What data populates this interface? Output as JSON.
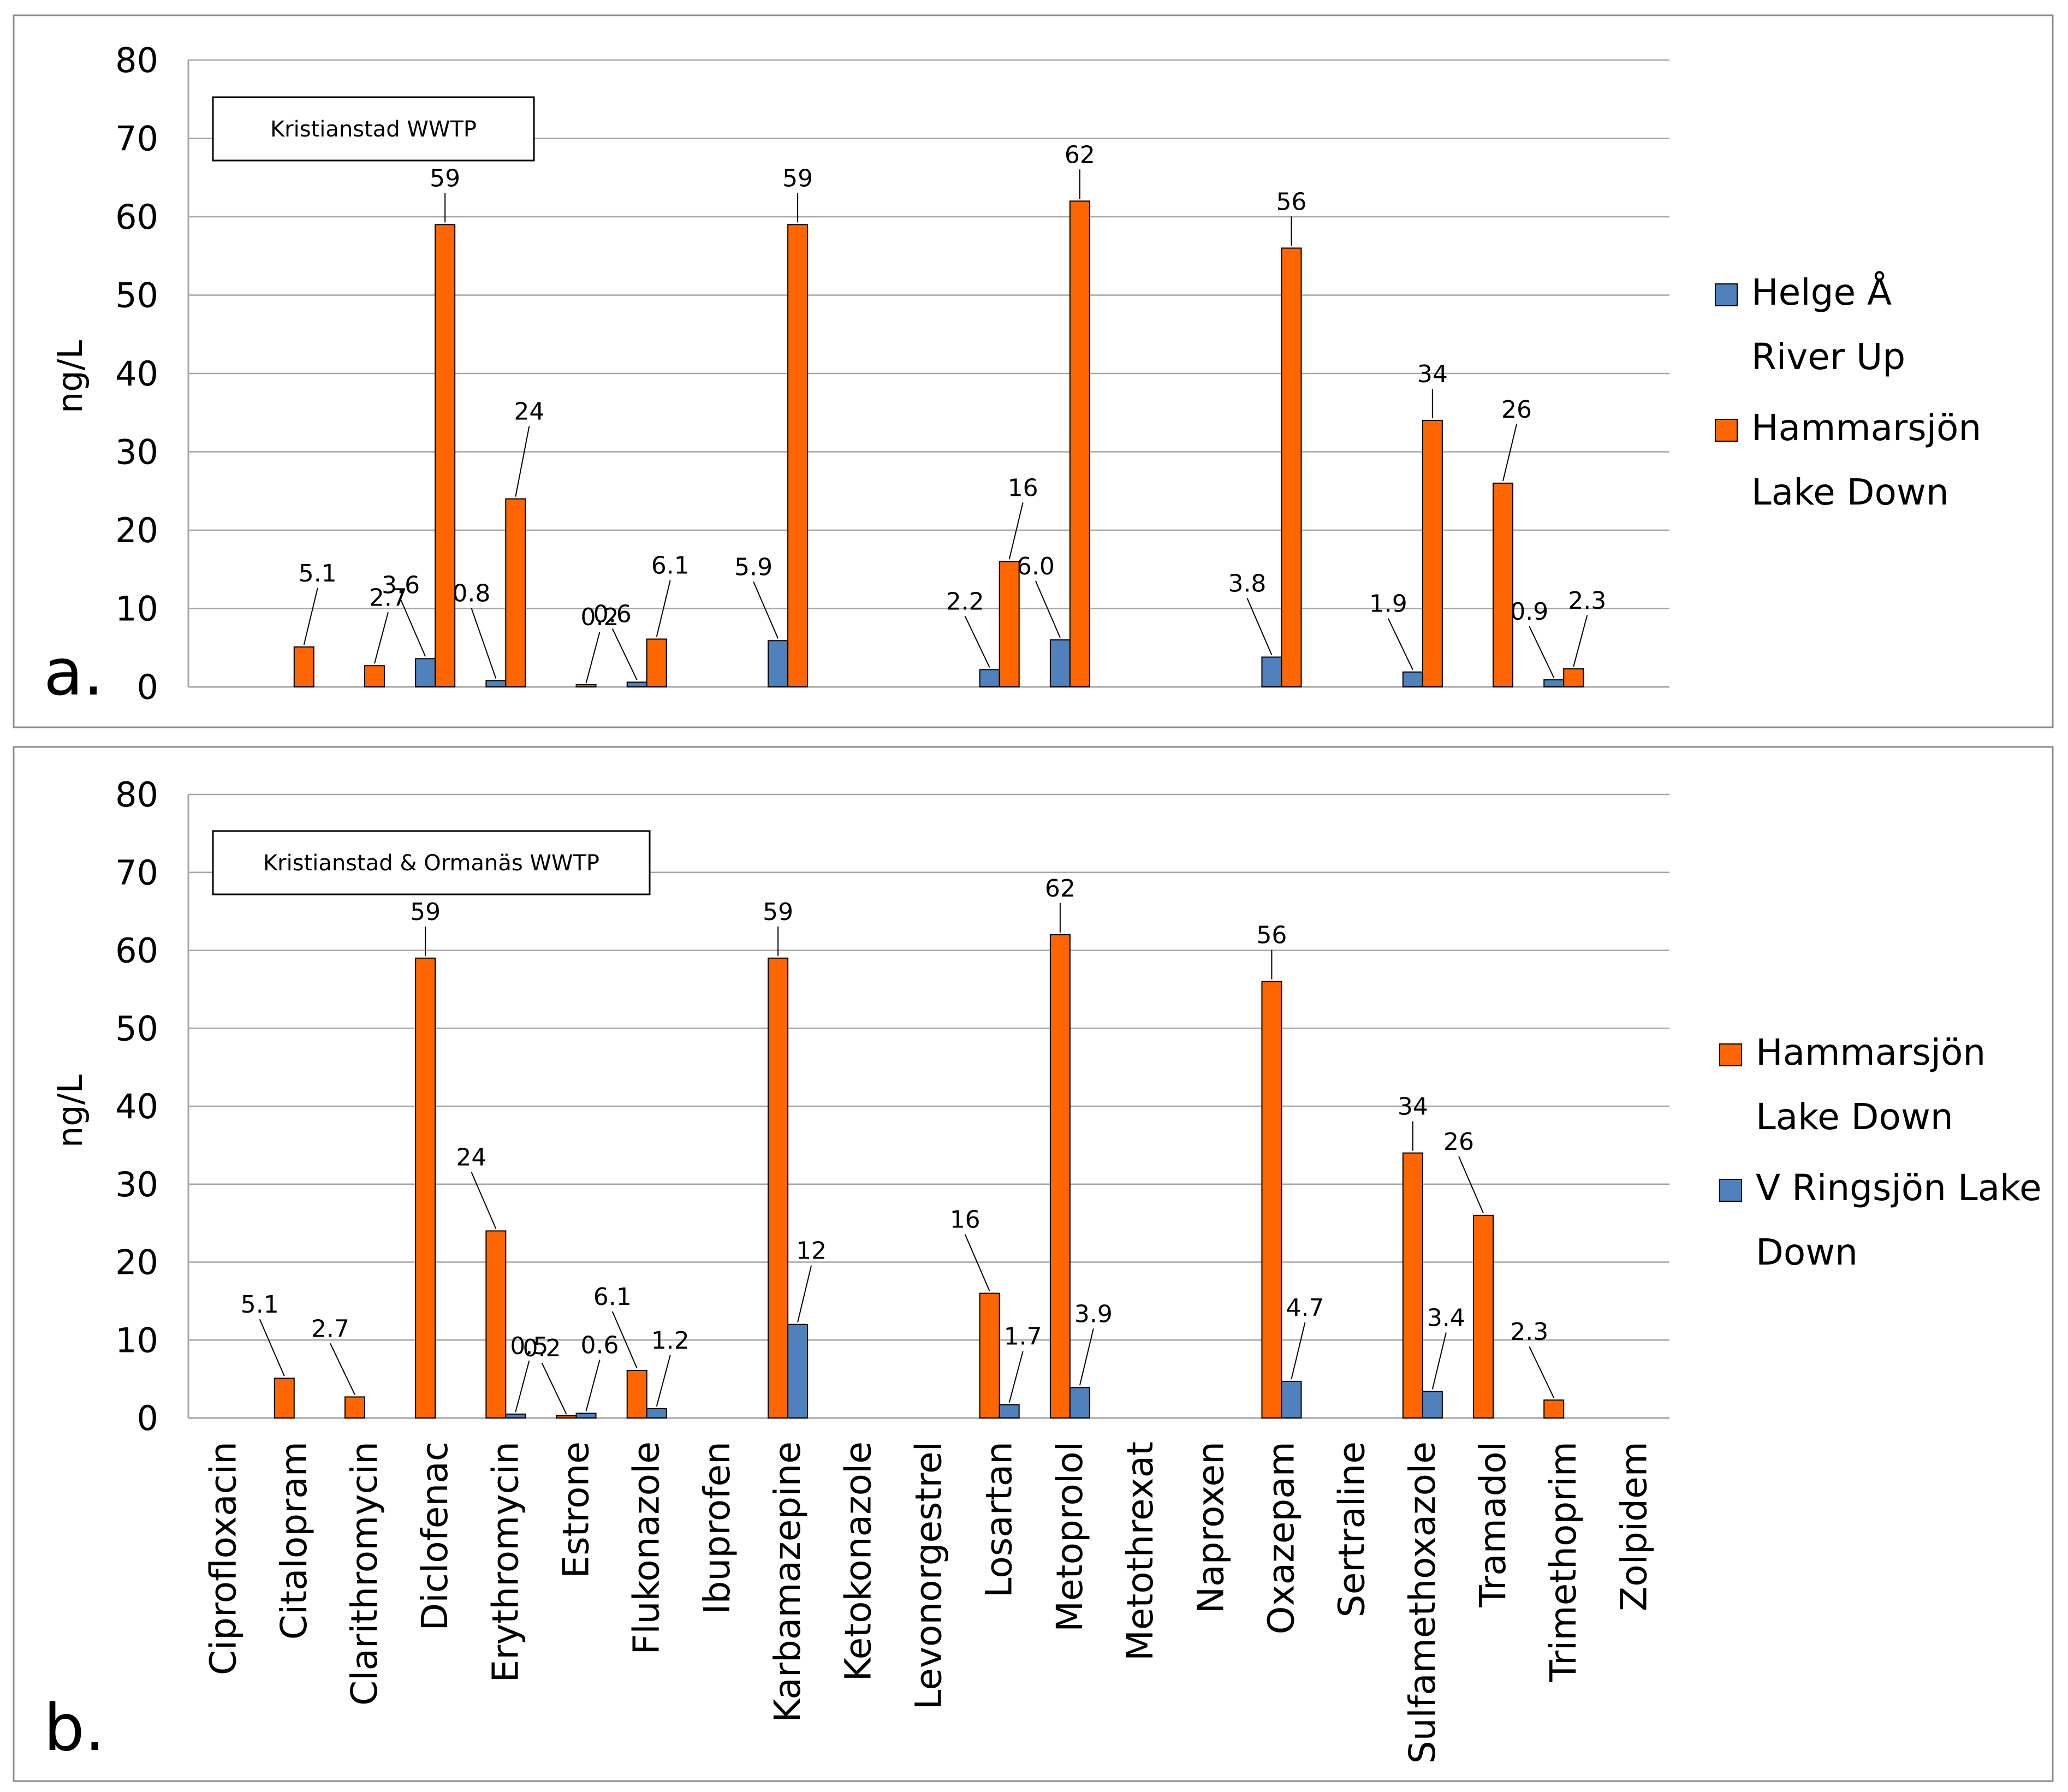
{
  "colors": {
    "orange": "#FF6600",
    "blue": "#4F81BD",
    "grid": "#A6A6A6",
    "frame": "#8C8C8C"
  },
  "chart_data": [
    {
      "type": "bar",
      "panel_label": "a.",
      "annotation": "Kristianstad WWTP",
      "ylabel": "ng/L",
      "ylim": [
        0,
        80
      ],
      "yticks": [
        0,
        10,
        20,
        30,
        40,
        50,
        60,
        70,
        80
      ],
      "legend_position": "right",
      "grid": true,
      "categories": [
        "Ciprofloxacin",
        "Citalopram",
        "Clarithromycin",
        "Diclofenac",
        "Erythromycin",
        "Estrone",
        "Flukonazole",
        "Ibuprofen",
        "Karbamazepine",
        "Ketokonazole",
        "Levonorgestrel",
        "Losartan",
        "Metoprolol",
        "Metothrexat",
        "Naproxen",
        "Oxazepam",
        "Sertraline",
        "Sulfamethoxazole",
        "Tramadol",
        "Trimethoprim",
        "Zolpidem"
      ],
      "series": [
        {
          "name": "Helge Å River Up",
          "color": "#4F81BD",
          "values": [
            null,
            null,
            null,
            3.6,
            0.8,
            null,
            0.6,
            null,
            5.9,
            null,
            null,
            2.2,
            6.0,
            null,
            null,
            3.8,
            null,
            1.9,
            null,
            0.9,
            null
          ],
          "labels": [
            null,
            null,
            null,
            "3.6",
            "0.8",
            null,
            "0.6",
            null,
            "5.9",
            null,
            null,
            "2.2",
            "6.0",
            null,
            null,
            "3.8",
            null,
            "1.9",
            null,
            "0.9",
            null
          ]
        },
        {
          "name": "Hammarsjön Lake Down",
          "color": "#FF6600",
          "values": [
            null,
            5.1,
            2.7,
            59,
            24,
            0.2,
            6.1,
            null,
            59,
            null,
            null,
            16,
            62,
            null,
            null,
            56,
            null,
            34,
            26,
            2.3,
            null
          ],
          "labels": [
            null,
            "5.1",
            "2.7",
            "59",
            "24",
            "0.2",
            "6.1",
            null,
            "59",
            null,
            null,
            "16",
            "62",
            null,
            null,
            "56",
            null,
            "34",
            "26",
            "2.3",
            null
          ]
        }
      ],
      "legend_lines": [
        [
          "Helge Å",
          "River Up"
        ],
        [
          "Hammarsjön",
          "Lake Down"
        ]
      ]
    },
    {
      "type": "bar",
      "panel_label": "b.",
      "annotation": "Kristianstad & Ormanäs WWTP",
      "ylabel": "ng/L",
      "ylim": [
        0,
        80
      ],
      "yticks": [
        0,
        10,
        20,
        30,
        40,
        50,
        60,
        70,
        80
      ],
      "legend_position": "right",
      "grid": true,
      "categories": [
        "Ciprofloxacin",
        "Citalopram",
        "Clarithromycin",
        "Diclofenac",
        "Erythromycin",
        "Estrone",
        "Flukonazole",
        "Ibuprofen",
        "Karbamazepine",
        "Ketokonazole",
        "Levonorgestrel",
        "Losartan",
        "Metoprolol",
        "Metothrexat",
        "Naproxen",
        "Oxazepam",
        "Sertraline",
        "Sulfamethoxazole",
        "Tramadol",
        "Trimethoprim",
        "Zolpidem"
      ],
      "series": [
        {
          "name": "Hammarsjön Lake Down",
          "color": "#FF6600",
          "values": [
            null,
            5.1,
            2.7,
            59,
            24,
            0.2,
            6.1,
            null,
            59,
            null,
            null,
            16,
            62,
            null,
            null,
            56,
            null,
            34,
            26,
            2.3,
            null
          ],
          "labels": [
            null,
            "5.1",
            "2.7",
            "59",
            "24",
            "0.2",
            "6.1",
            null,
            "59",
            null,
            null,
            "16",
            "62",
            null,
            null,
            "56",
            null,
            "34",
            "26",
            "2.3",
            null
          ]
        },
        {
          "name": "V Ringsjön Lake Down",
          "color": "#4F81BD",
          "values": [
            null,
            null,
            null,
            null,
            0.5,
            0.6,
            1.2,
            null,
            12,
            null,
            null,
            1.7,
            3.9,
            null,
            null,
            4.7,
            null,
            3.4,
            null,
            null,
            null
          ],
          "labels": [
            null,
            null,
            null,
            null,
            "0.5",
            "0.6",
            "1.2",
            null,
            "12",
            null,
            null,
            "1.7",
            "3.9",
            null,
            null,
            "4.7",
            null,
            "3.4",
            null,
            null,
            null
          ]
        }
      ],
      "legend_lines": [
        [
          "Hammarsjön",
          "Lake Down"
        ],
        [
          "V Ringsjön Lake",
          "Down"
        ]
      ]
    }
  ]
}
